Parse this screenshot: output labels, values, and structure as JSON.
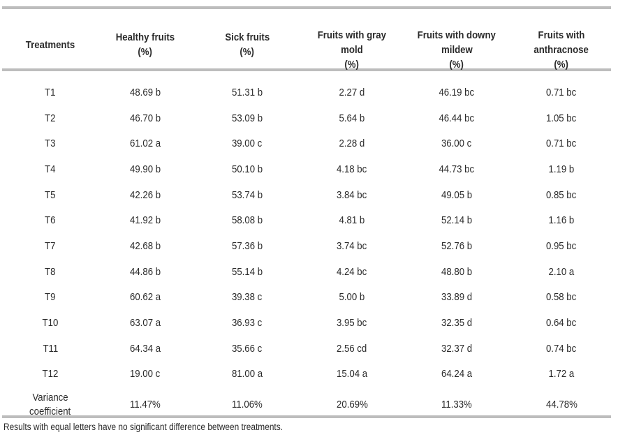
{
  "headers": [
    {
      "line1": "Treatments",
      "line2": "",
      "line3": ""
    },
    {
      "line1": "Healthy fruits",
      "line2": "(%)",
      "line3": ""
    },
    {
      "line1": "Sick fruits",
      "line2": "(%)",
      "line3": ""
    },
    {
      "line1": "Fruits with gray",
      "line2": "mold",
      "line3": "(%)"
    },
    {
      "line1": "Fruits with downy",
      "line2": "mildew",
      "line3": "(%)"
    },
    {
      "line1": "Fruits with",
      "line2": "anthracnose",
      "line3": "(%)"
    }
  ],
  "rows": [
    [
      "T1",
      "48.69 b",
      "51.31 b",
      "2.27 d",
      "46.19 bc",
      "0.71 bc"
    ],
    [
      "T2",
      "46.70 b",
      "53.09 b",
      "5.64 b",
      "46.44 bc",
      "1.05 bc"
    ],
    [
      "T3",
      "61.02 a",
      "39.00 c",
      "2.28 d",
      "36.00 c",
      "0.71 bc"
    ],
    [
      "T4",
      "49.90 b",
      "50.10 b",
      "4.18 bc",
      "44.73 bc",
      "1.19 b"
    ],
    [
      "T5",
      "42.26 b",
      "53.74 b",
      "3.84 bc",
      "49.05 b",
      "0.85 bc"
    ],
    [
      "T6",
      "41.92 b",
      "58.08 b",
      "4.81 b",
      "52.14 b",
      "1.16 b"
    ],
    [
      "T7",
      "42.68 b",
      "57.36 b",
      "3.74 bc",
      "52.76 b",
      "0.95 bc"
    ],
    [
      "T8",
      "44.86 b",
      "55.14 b",
      "4.24 bc",
      "48.80 b",
      "2.10 a"
    ],
    [
      "T9",
      "60.62 a",
      "39.38 c",
      "5.00 b",
      "33.89 d",
      "0.58 bc"
    ],
    [
      "T10",
      "63.07 a",
      "36.93 c",
      "3.95 bc",
      "32.35 d",
      "0.64 bc"
    ],
    [
      "T11",
      "64.34 a",
      "35.66 c",
      "2.56 cd",
      "32.37 d",
      "0.74 bc"
    ],
    [
      "T12",
      "19.00 c",
      "81.00 a",
      "15.04 a",
      "64.24 a",
      "1.72 a"
    ]
  ],
  "cv": {
    "label1": "Variance",
    "label2": "coefficient",
    "values": [
      "11.47%",
      "11.06%",
      "20.69%",
      "11.33%",
      "44.78%"
    ]
  },
  "note": "Results with equal letters have no significant difference between treatments."
}
